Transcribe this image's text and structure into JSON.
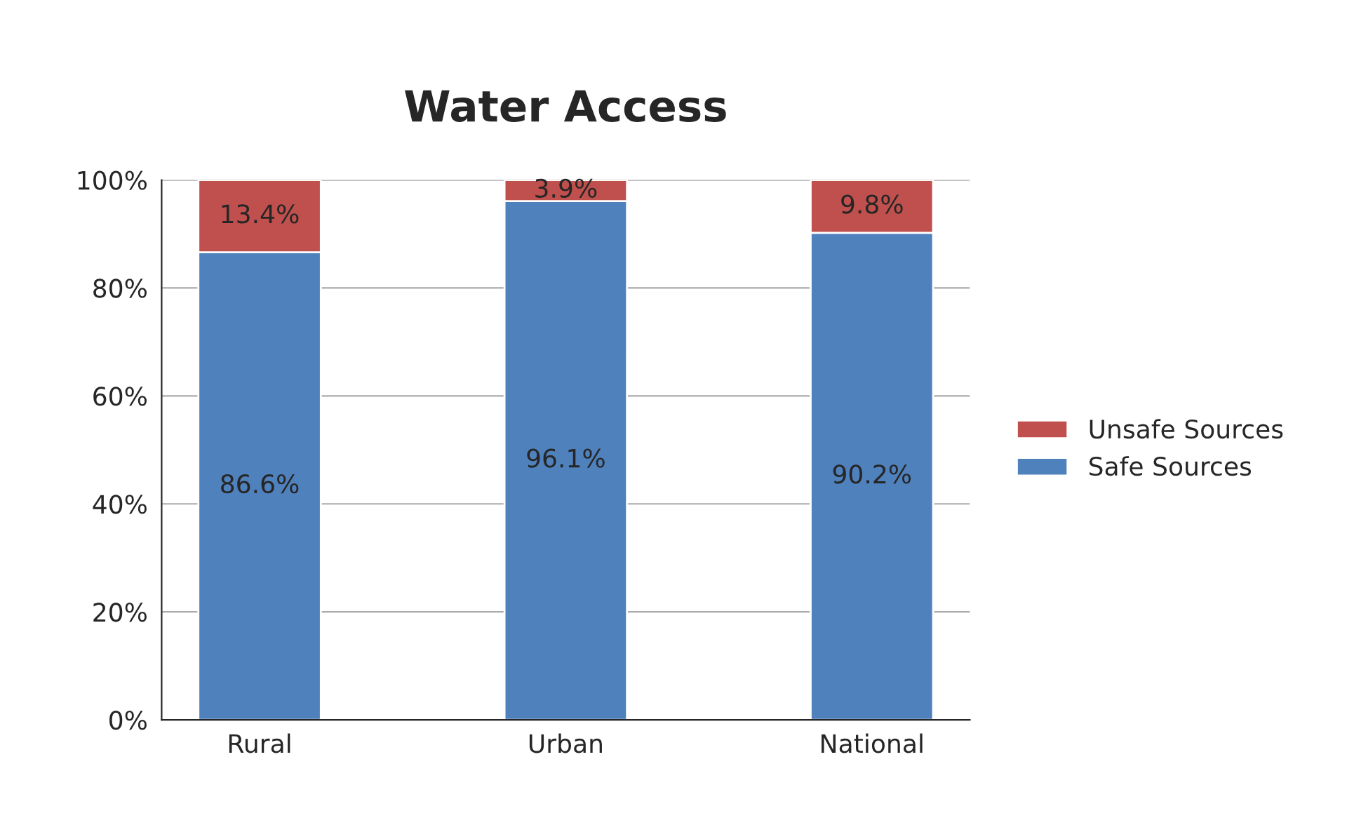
{
  "chart_data": {
    "type": "bar",
    "title": "Water Access",
    "stacked": true,
    "categories": [
      "Rural",
      "Urban",
      "National"
    ],
    "series": [
      {
        "name": "Safe Sources",
        "color": "#4f81bd",
        "values": [
          86.6,
          96.1,
          90.2
        ],
        "value_labels": [
          "86.6%",
          "96.1%",
          "90.2%"
        ]
      },
      {
        "name": "Unsafe Sources",
        "color": "#c0504d",
        "values": [
          13.4,
          3.9,
          9.8
        ],
        "value_labels": [
          "13.4%",
          "3.9%",
          "9.8%"
        ]
      }
    ],
    "ylim": [
      0,
      100
    ],
    "yticks": [
      {
        "value": 0,
        "label": "0%"
      },
      {
        "value": 20,
        "label": "20%"
      },
      {
        "value": 40,
        "label": "40%"
      },
      {
        "value": 60,
        "label": "60%"
      },
      {
        "value": 80,
        "label": "80%"
      },
      {
        "value": 100,
        "label": "100%"
      }
    ],
    "grid": "y",
    "legend": "right"
  }
}
